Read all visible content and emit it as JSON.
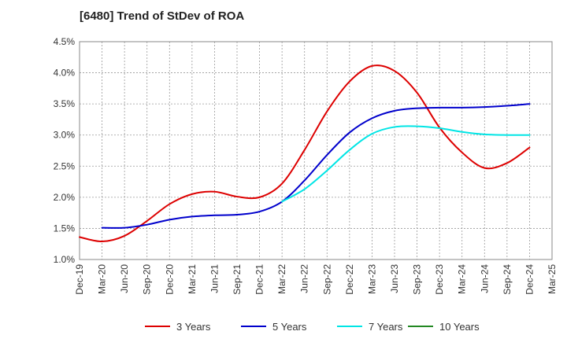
{
  "chart_data": {
    "type": "line",
    "title": "[6480]  Trend of StDev of ROA",
    "xlabel": "",
    "ylabel": "",
    "x_ticks": [
      "Dec-19",
      "Mar-20",
      "Jun-20",
      "Sep-20",
      "Dec-20",
      "Mar-21",
      "Jun-21",
      "Sep-21",
      "Dec-21",
      "Mar-22",
      "Jun-22",
      "Sep-22",
      "Dec-22",
      "Mar-23",
      "Jun-23",
      "Sep-23",
      "Dec-23",
      "Mar-24",
      "Jun-24",
      "Sep-24",
      "Dec-24",
      "Mar-25"
    ],
    "y_ticks": [
      "1.0%",
      "1.5%",
      "2.0%",
      "2.5%",
      "3.0%",
      "3.5%",
      "4.0%",
      "4.5%"
    ],
    "ylim": [
      1.0,
      4.5
    ],
    "grid": true,
    "legend_position": "bottom",
    "series": [
      {
        "name": "3 Years",
        "color": "#dd0000",
        "x": [
          "Dec-19",
          "Mar-20",
          "Jun-20",
          "Sep-20",
          "Dec-20",
          "Mar-21",
          "Jun-21",
          "Sep-21",
          "Dec-21",
          "Mar-22",
          "Jun-22",
          "Sep-22",
          "Dec-22",
          "Mar-23",
          "Jun-23",
          "Sep-23",
          "Dec-23",
          "Mar-24",
          "Jun-24",
          "Sep-24",
          "Dec-24"
        ],
        "values": [
          1.36,
          1.29,
          1.38,
          1.62,
          1.89,
          2.05,
          2.09,
          2.01,
          2.0,
          2.22,
          2.76,
          3.38,
          3.86,
          4.11,
          4.03,
          3.68,
          3.12,
          2.72,
          2.47,
          2.55,
          2.8
        ]
      },
      {
        "name": "5 Years",
        "color": "#0000cc",
        "x": [
          "Mar-20",
          "Jun-20",
          "Sep-20",
          "Dec-20",
          "Mar-21",
          "Jun-21",
          "Sep-21",
          "Dec-21",
          "Mar-22",
          "Jun-22",
          "Sep-22",
          "Dec-22",
          "Mar-23",
          "Jun-23",
          "Sep-23",
          "Dec-23",
          "Mar-24",
          "Jun-24",
          "Sep-24",
          "Dec-24"
        ],
        "values": [
          1.51,
          1.51,
          1.56,
          1.64,
          1.69,
          1.71,
          1.72,
          1.77,
          1.93,
          2.27,
          2.68,
          3.04,
          3.27,
          3.39,
          3.43,
          3.44,
          3.44,
          3.45,
          3.47,
          3.5
        ]
      },
      {
        "name": "7 Years",
        "color": "#00e5e5",
        "x": [
          "Mar-22",
          "Jun-22",
          "Sep-22",
          "Dec-22",
          "Mar-23",
          "Jun-23",
          "Sep-23",
          "Dec-23",
          "Mar-24",
          "Jun-24",
          "Sep-24",
          "Dec-24"
        ],
        "values": [
          1.93,
          2.13,
          2.43,
          2.76,
          3.02,
          3.13,
          3.14,
          3.11,
          3.05,
          3.01,
          3.0,
          3.0
        ]
      },
      {
        "name": "10 Years",
        "color": "#228822",
        "x": [],
        "values": []
      }
    ]
  }
}
